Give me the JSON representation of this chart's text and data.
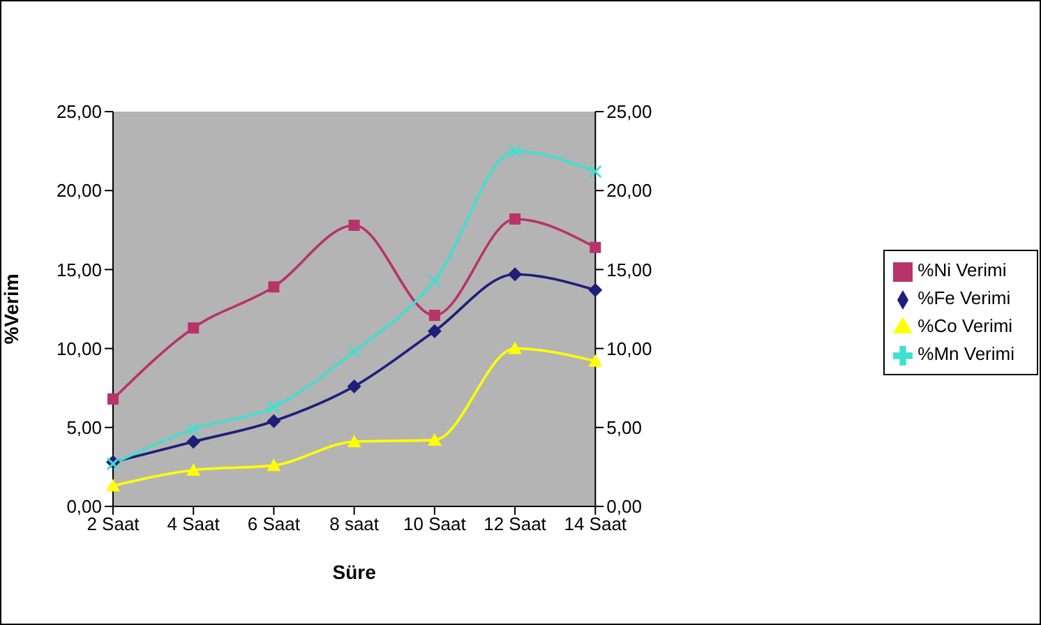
{
  "chart_data": {
    "type": "line",
    "xlabel": "Süre",
    "ylabel": "%Verim",
    "categories": [
      "2 Saat",
      "4 Saat",
      "6 Saat",
      "8 saat",
      "10 Saat",
      "12 Saat",
      "14 Saat"
    ],
    "series": [
      {
        "name": "%Ni Verimi",
        "color": "#b8336a",
        "marker": "square",
        "values": [
          6.8,
          11.3,
          13.9,
          17.8,
          12.1,
          18.2,
          16.4
        ]
      },
      {
        "name": "%Fe Verimi",
        "color": "#1f1f7a",
        "marker": "diamond",
        "values": [
          2.8,
          4.1,
          5.4,
          7.6,
          11.1,
          14.7,
          13.7
        ]
      },
      {
        "name": "%Co Verimi",
        "color": "#ffff00",
        "marker": "triangle",
        "values": [
          1.3,
          2.3,
          2.6,
          4.1,
          4.2,
          10.0,
          9.2
        ]
      },
      {
        "name": "%Mn Verimi",
        "color": "#40e0d0",
        "marker": "cross",
        "values": [
          2.7,
          4.9,
          6.3,
          9.8,
          14.3,
          22.5,
          21.2
        ]
      }
    ],
    "ylim": [
      0,
      25
    ],
    "yticks": [
      {
        "value": 0,
        "label": "0,00"
      },
      {
        "value": 5,
        "label": "5,00"
      },
      {
        "value": 10,
        "label": "10,00"
      },
      {
        "value": 15,
        "label": "15,00"
      },
      {
        "value": 20,
        "label": "20,00"
      },
      {
        "value": 25,
        "label": "25,00"
      }
    ],
    "y2lim": [
      0,
      25
    ],
    "y2ticks": [
      {
        "value": 0,
        "label": "0,00"
      },
      {
        "value": 5,
        "label": "5,00"
      },
      {
        "value": 10,
        "label": "10,00"
      },
      {
        "value": 15,
        "label": "15,00"
      },
      {
        "value": 20,
        "label": "20,00"
      },
      {
        "value": 25,
        "label": "25,00"
      }
    ],
    "grid": false,
    "legend": "right",
    "line_style": "solid"
  }
}
